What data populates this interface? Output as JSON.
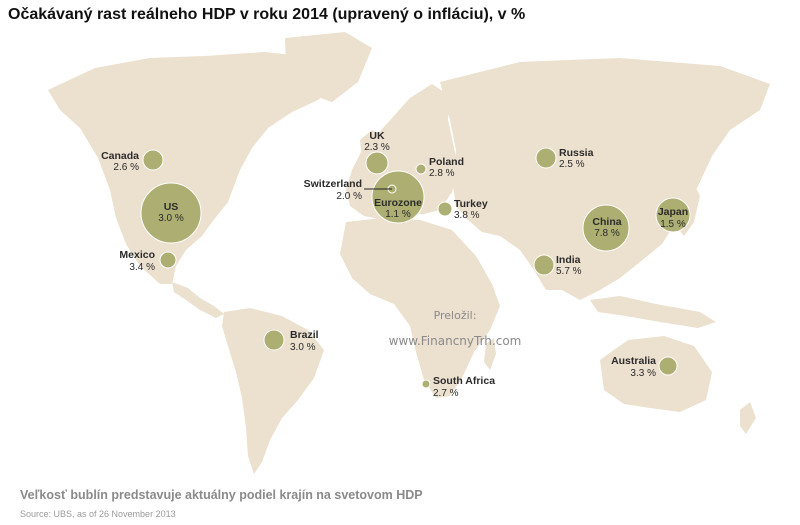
{
  "title": "Očakávaný rast reálneho HDP v roku 2014 (upravený o infláciu), v %",
  "watermark": {
    "label": "Preložil:",
    "url": "www.FinancnyTrh.com"
  },
  "note": "Veľkosť bublín predstavuje aktuálny podiel krajín na svetovom HDP",
  "source": "Source: UBS, as of 26 November 2013",
  "colors": {
    "land": "#ece0cf",
    "bubble": "#a9ab6d"
  },
  "chart_data": {
    "type": "bubble-map",
    "metric": "Expected 2014 real GDP growth (%)",
    "bubble_size": "Current share of world GDP",
    "countries": [
      {
        "id": "us",
        "name": "US",
        "value": "3.0 %"
      },
      {
        "id": "canada",
        "name": "Canada",
        "value": "2.6 %"
      },
      {
        "id": "mexico",
        "name": "Mexico",
        "value": "3.4 %"
      },
      {
        "id": "brazil",
        "name": "Brazil",
        "value": "3.0 %"
      },
      {
        "id": "uk",
        "name": "UK",
        "value": "2.3 %"
      },
      {
        "id": "switzerland",
        "name": "Switzerland",
        "value": "2.0 %"
      },
      {
        "id": "eurozone",
        "name": "Eurozone",
        "value": "1.1 %"
      },
      {
        "id": "poland",
        "name": "Poland",
        "value": "2.8 %"
      },
      {
        "id": "turkey",
        "name": "Turkey",
        "value": "3.8 %"
      },
      {
        "id": "russia",
        "name": "Russia",
        "value": "2.5 %"
      },
      {
        "id": "china",
        "name": "China",
        "value": "7.8 %"
      },
      {
        "id": "japan",
        "name": "Japan",
        "value": "1.5 %"
      },
      {
        "id": "india",
        "name": "India",
        "value": "5.7 %"
      },
      {
        "id": "south_africa",
        "name": "South Africa",
        "value": "2.7 %"
      },
      {
        "id": "australia",
        "name": "Australia",
        "value": "3.3 %"
      }
    ]
  }
}
